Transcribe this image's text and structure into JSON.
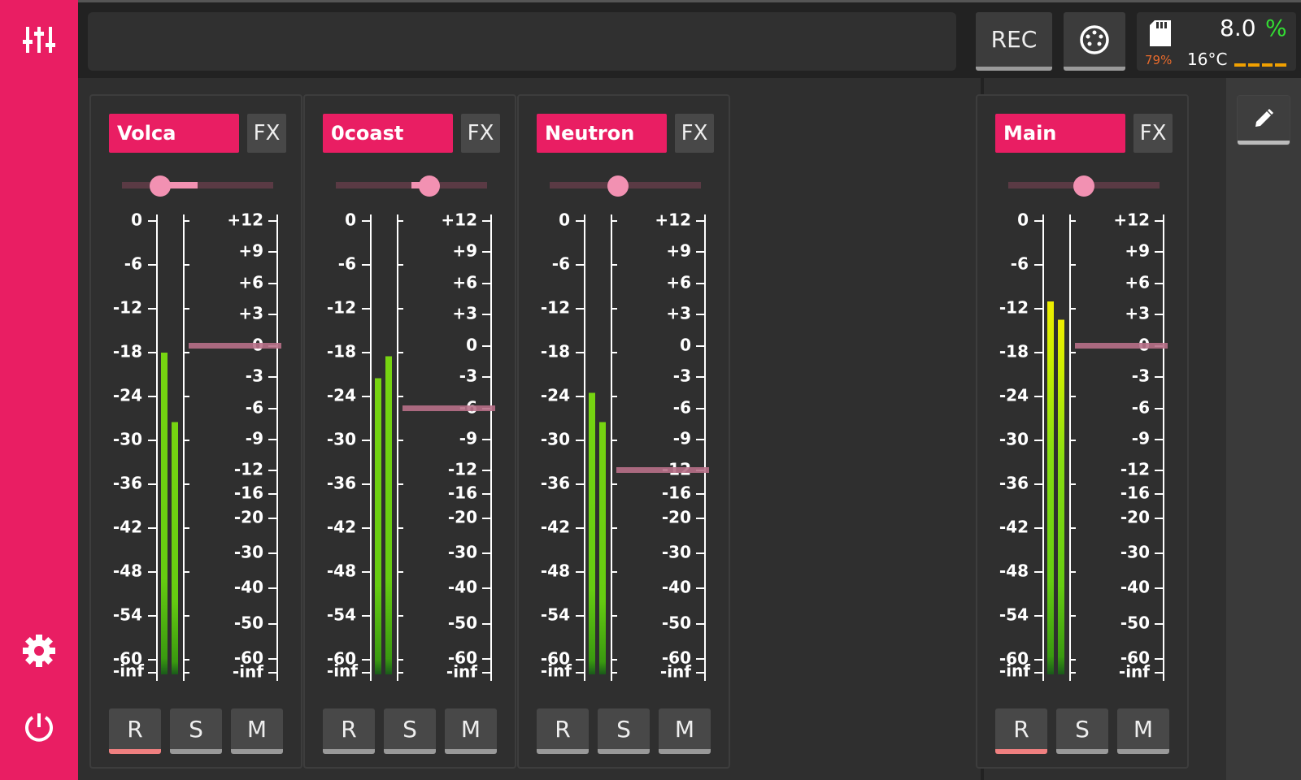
{
  "sidebar": {
    "mixer_icon": "sliders-icon",
    "settings_icon": "gear-icon",
    "power_icon": "power-icon"
  },
  "topbar": {
    "rec_label": "REC",
    "midi_icon": "midi-din-icon",
    "sd_icon": "sd-card-icon",
    "sd_usage": "79%",
    "cpu_value": "8.0",
    "cpu_unit": "%",
    "temperature": "16°C"
  },
  "meter_scale": {
    "left_ticks": [
      "0",
      "-6",
      "-12",
      "-18",
      "-24",
      "-30",
      "-36",
      "-42",
      "-48",
      "-54",
      "-60",
      "-inf"
    ],
    "right_ticks": [
      "+12",
      "+9",
      "+6",
      "+3",
      "0",
      "-3",
      "-6",
      "-9",
      "-12",
      "-16",
      "-20",
      "-30",
      "-40",
      "-50",
      "-60",
      "-inf"
    ]
  },
  "channels": [
    {
      "name": "Volca",
      "fx_label": "FX",
      "pan": 0.25,
      "meter_left_db": -18,
      "meter_right_db": -27.5,
      "fader_db": 0,
      "record_label": "R",
      "solo_label": "S",
      "mute_label": "M",
      "record_armed": true
    },
    {
      "name": "0coast",
      "fx_label": "FX",
      "pan": 0.62,
      "meter_left_db": -21.5,
      "meter_right_db": -18.5,
      "fader_db": -6,
      "record_label": "R",
      "solo_label": "S",
      "mute_label": "M",
      "record_armed": false
    },
    {
      "name": "Neutron",
      "fx_label": "FX",
      "pan": 0.45,
      "meter_left_db": -23.5,
      "meter_right_db": -27.5,
      "fader_db": -12,
      "record_label": "R",
      "solo_label": "S",
      "mute_label": "M",
      "record_armed": false
    }
  ],
  "main": {
    "name": "Main",
    "fx_label": "FX",
    "pan": 0.5,
    "meter_left_db": -11,
    "meter_right_db": -13.5,
    "fader_db": 0,
    "record_label": "R",
    "solo_label": "S",
    "mute_label": "M",
    "record_armed": true
  },
  "edit_icon": "pencil-icon",
  "colors": {
    "accent": "#e91e63",
    "pan": "#f291b2",
    "meter_green": "#66cc11",
    "meter_yellow": "#eeee00",
    "fader_line": "#b87088",
    "cpu_green": "#33dd33",
    "sd_orange": "#e66a2c",
    "temp_orange": "#f0a000"
  }
}
